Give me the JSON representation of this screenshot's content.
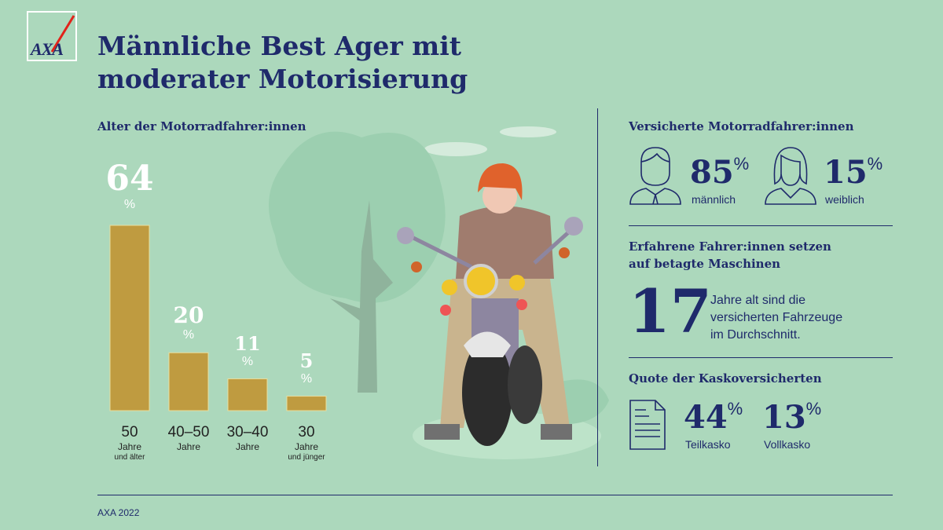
{
  "brand": {
    "logo_text": "AXA",
    "colors": {
      "navy": "#1f2a6b",
      "background": "#acd8bc",
      "bar": "#bf9b40",
      "logo_slash": "#e2231a"
    }
  },
  "title": [
    "Männliche Best Ager mit",
    "moderater Motorisierung"
  ],
  "chart_data": {
    "type": "bar",
    "title": "Alter der Motorradfahrer:innen",
    "categories": [
      "50",
      "40–50",
      "30–40",
      "30"
    ],
    "category_sublabels": [
      "Jahre",
      "Jahre",
      "Jahre",
      "Jahre"
    ],
    "category_sublabels2": [
      "und älter",
      "",
      "",
      "und jünger"
    ],
    "values": [
      64,
      20,
      11,
      5
    ],
    "value_labels": [
      "64",
      "20",
      "11",
      "5"
    ],
    "unit": "%",
    "ylim": [
      0,
      64
    ],
    "grid": false,
    "bar_color": "#bf9b40"
  },
  "gender": {
    "heading": "Versicherte Motorradfahrer:innen",
    "male": {
      "value": "85",
      "unit": "%",
      "label": "männlich",
      "icon": "man-icon"
    },
    "female": {
      "value": "15",
      "unit": "%",
      "label": "weiblich",
      "icon": "woman-icon"
    }
  },
  "age_vehicles": {
    "heading": [
      "Erfahrene Fahrer:innen setzen",
      "auf betagte Maschinen"
    ],
    "value": "17",
    "text": [
      "Jahre alt sind die",
      "versicherten Fahrzeuge",
      "im Durchschnitt."
    ]
  },
  "kasko": {
    "heading": "Quote der Kaskoversicherten",
    "icon": "document-icon",
    "teil": {
      "value": "44",
      "unit": "%",
      "label": "Teilkasko"
    },
    "voll": {
      "value": "13",
      "unit": "%",
      "label": "Vollkasko"
    }
  },
  "footer": "AXA 2022"
}
